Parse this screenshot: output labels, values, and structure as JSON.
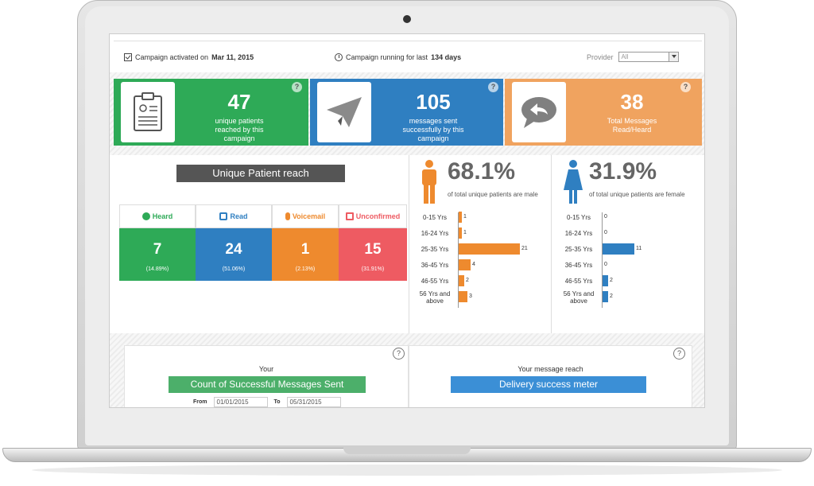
{
  "infobar": {
    "activated_prefix": "Campaign activated on",
    "activated_date": "Mar 11, 2015",
    "running_prefix": "Campaign running for last",
    "running_days": "134 days",
    "provider_label": "Provider",
    "provider_value": "All"
  },
  "kpis": [
    {
      "value": "47",
      "caption_1": "unique patients",
      "caption_2": "reached by this",
      "caption_3": "campaign",
      "color": "#2eaa57",
      "icon": "clipboard-icon"
    },
    {
      "value": "105",
      "caption_1": "messages sent",
      "caption_2": "successfully by this",
      "caption_3": "campaign",
      "color": "#2f7fc1",
      "icon": "paper-plane-icon"
    },
    {
      "value": "38",
      "caption_1": "Total Messages",
      "caption_2": "Read/Heard",
      "caption_3": "",
      "color": "#f0a35f",
      "icon": "reply-bubble-icon"
    }
  ],
  "reach": {
    "title": "Unique Patient reach",
    "statuses": [
      {
        "label": "Heard",
        "value": "7",
        "pct": "(14.89%)",
        "color": "#2eaa57",
        "text_color": "#2eaa57",
        "icon": "headset-icon"
      },
      {
        "label": "Read",
        "value": "24",
        "pct": "(51.06%)",
        "color": "#2f7fc1",
        "text_color": "#2f7fc1",
        "icon": "document-icon"
      },
      {
        "label": "Voicemail",
        "value": "1",
        "pct": "(2.13%)",
        "color": "#ee8a2e",
        "text_color": "#ee8a2e",
        "icon": "microphone-icon"
      },
      {
        "label": "Unconfirmed",
        "value": "15",
        "pct": "(31.91%)",
        "color": "#ee5b62",
        "text_color": "#ee5b62",
        "icon": "house-warning-icon"
      }
    ]
  },
  "male": {
    "pct": "68.1%",
    "caption": "of total unique patients are male",
    "color": "#ee8a2e",
    "ages": [
      {
        "label_1": "0-15 Yrs",
        "label_2": "",
        "value": 1
      },
      {
        "label_1": "16-24 Yrs",
        "label_2": "",
        "value": 1
      },
      {
        "label_1": "25-35 Yrs",
        "label_2": "",
        "value": 21
      },
      {
        "label_1": "36-45 Yrs",
        "label_2": "",
        "value": 4
      },
      {
        "label_1": "46-55 Yrs",
        "label_2": "",
        "value": 2
      },
      {
        "label_1": "56 Yrs and",
        "label_2": "above",
        "value": 3
      }
    ]
  },
  "female": {
    "pct": "31.9%",
    "caption": "of total unique patients are female",
    "color": "#2f7fc1",
    "ages": [
      {
        "label_1": "0-15 Yrs",
        "label_2": "",
        "value": 0
      },
      {
        "label_1": "16-24 Yrs",
        "label_2": "",
        "value": 0
      },
      {
        "label_1": "25-35 Yrs",
        "label_2": "",
        "value": 11
      },
      {
        "label_1": "36-45 Yrs",
        "label_2": "",
        "value": 0
      },
      {
        "label_1": "46-55 Yrs",
        "label_2": "",
        "value": 2
      },
      {
        "label_1": "56 Yrs and",
        "label_2": "above",
        "value": 2
      }
    ]
  },
  "cards": {
    "help": "?",
    "left": {
      "kicker": "Your",
      "title": "Count of Successful Messages Sent",
      "from_label": "From",
      "from_value": "01/01/2015",
      "to_label": "To",
      "to_value": "05/31/2015"
    },
    "right": {
      "kicker": "Your message reach",
      "title": "Delivery success meter"
    }
  }
}
